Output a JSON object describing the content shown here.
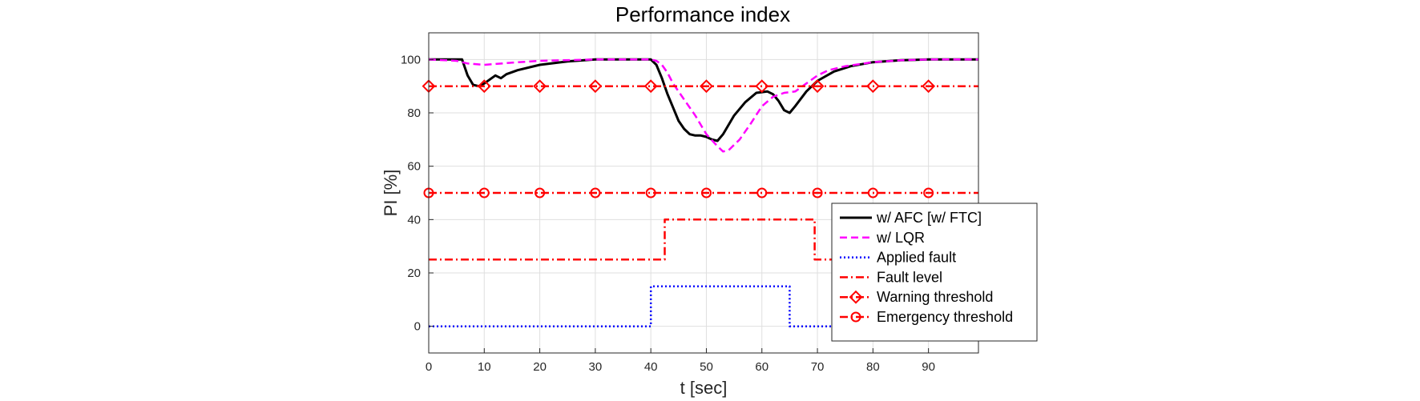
{
  "chart_data": {
    "type": "line",
    "title": "Performance index",
    "xlabel": "t [sec]",
    "ylabel": "PI [%]",
    "xlim": [
      0,
      99
    ],
    "ylim": [
      -10,
      110
    ],
    "xticks": [
      "0",
      "10",
      "20",
      "30",
      "40",
      "50",
      "60",
      "70",
      "80",
      "90"
    ],
    "yticks": [
      "0",
      "20",
      "40",
      "60",
      "80",
      "100"
    ],
    "grid": true,
    "legend_position": "lower-right",
    "series": [
      {
        "name": "w/ AFC [w/ FTC]",
        "color": "#000000",
        "style": "solid",
        "marker": "none",
        "points": [
          [
            0,
            100
          ],
          [
            6,
            100
          ],
          [
            7,
            94
          ],
          [
            8,
            90.5
          ],
          [
            9,
            90
          ],
          [
            10,
            91
          ],
          [
            11,
            92.5
          ],
          [
            12,
            94
          ],
          [
            13,
            93
          ],
          [
            14,
            94.5
          ],
          [
            16,
            96
          ],
          [
            20,
            98
          ],
          [
            25,
            99.3
          ],
          [
            30,
            100
          ],
          [
            40,
            100
          ],
          [
            41,
            98
          ],
          [
            42,
            93
          ],
          [
            43,
            87
          ],
          [
            44,
            82
          ],
          [
            45,
            77
          ],
          [
            46,
            74
          ],
          [
            47,
            72
          ],
          [
            48,
            71.5
          ],
          [
            49,
            71.5
          ],
          [
            50,
            71
          ],
          [
            51,
            70
          ],
          [
            52,
            69.5
          ],
          [
            53,
            72
          ],
          [
            55,
            79
          ],
          [
            57,
            84
          ],
          [
            59,
            87.5
          ],
          [
            61,
            88
          ],
          [
            62,
            87
          ],
          [
            63,
            84.5
          ],
          [
            64,
            81
          ],
          [
            65,
            80
          ],
          [
            66,
            82.5
          ],
          [
            68,
            88
          ],
          [
            70,
            92
          ],
          [
            73,
            95.5
          ],
          [
            76,
            97.5
          ],
          [
            80,
            99
          ],
          [
            85,
            99.7
          ],
          [
            90,
            100
          ],
          [
            99,
            100
          ]
        ]
      },
      {
        "name": "w/ LQR",
        "color": "#ff00ff",
        "style": "dashed",
        "marker": "none",
        "points": [
          [
            0,
            100
          ],
          [
            5,
            99.5
          ],
          [
            7,
            98.5
          ],
          [
            10,
            98
          ],
          [
            15,
            98.8
          ],
          [
            20,
            99.5
          ],
          [
            30,
            100
          ],
          [
            40,
            100
          ],
          [
            41,
            99.5
          ],
          [
            42,
            98
          ],
          [
            43,
            95
          ],
          [
            44,
            91
          ],
          [
            46,
            85
          ],
          [
            48,
            79
          ],
          [
            50,
            72
          ],
          [
            52,
            67.5
          ],
          [
            53,
            65.5
          ],
          [
            54,
            66
          ],
          [
            56,
            70
          ],
          [
            58,
            76
          ],
          [
            60,
            82.5
          ],
          [
            62,
            86
          ],
          [
            64,
            87.5
          ],
          [
            66,
            88
          ],
          [
            68,
            91
          ],
          [
            70,
            94
          ],
          [
            72,
            96
          ],
          [
            75,
            97.5
          ],
          [
            80,
            99
          ],
          [
            85,
            99.7
          ],
          [
            90,
            100
          ],
          [
            99,
            100
          ]
        ]
      },
      {
        "name": "Applied fault",
        "color": "#0000ff",
        "style": "dotted",
        "marker": "none",
        "points": [
          [
            0,
            0
          ],
          [
            40,
            0
          ],
          [
            40,
            15
          ],
          [
            65,
            15
          ],
          [
            65,
            0
          ],
          [
            99,
            0
          ]
        ]
      },
      {
        "name": "Fault level",
        "color": "#ff0000",
        "style": "dashdot",
        "marker": "none",
        "points": [
          [
            0,
            25
          ],
          [
            42.5,
            25
          ],
          [
            42.5,
            40
          ],
          [
            69.5,
            40
          ],
          [
            69.5,
            25
          ],
          [
            99,
            25
          ]
        ]
      },
      {
        "name": "Warning threshold",
        "color": "#ff0000",
        "style": "dashdot",
        "marker": "diamond",
        "points": [
          [
            0,
            90
          ],
          [
            99,
            90
          ]
        ],
        "marker_x": [
          0,
          10,
          20,
          30,
          40,
          50,
          60,
          70,
          80,
          90
        ]
      },
      {
        "name": "Emergency threshold",
        "color": "#ff0000",
        "style": "dashdot",
        "marker": "circle",
        "points": [
          [
            0,
            50
          ],
          [
            99,
            50
          ]
        ],
        "marker_x": [
          0,
          10,
          20,
          30,
          40,
          50,
          60,
          70,
          80,
          90
        ]
      }
    ]
  }
}
